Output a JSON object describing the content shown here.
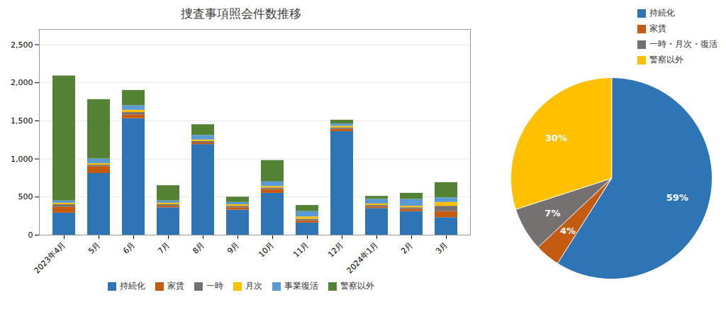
{
  "chart_data": [
    {
      "type": "bar",
      "title": "捜査事項照会件数推移",
      "categories": [
        "2023年4月",
        "5月",
        "6月",
        "7月",
        "8月",
        "9月",
        "10月",
        "11月",
        "12月",
        "2024年1月",
        "2月",
        "3月"
      ],
      "series": [
        {
          "name": "持続化",
          "color": "#2E75B6",
          "values": [
            290,
            810,
            1530,
            360,
            1190,
            330,
            550,
            160,
            1360,
            350,
            310,
            230
          ]
        },
        {
          "name": "家賃",
          "color": "#C55A11",
          "values": [
            80,
            90,
            50,
            20,
            20,
            30,
            50,
            30,
            30,
            20,
            30,
            80
          ]
        },
        {
          "name": "一時",
          "color": "#767171",
          "values": [
            30,
            20,
            30,
            20,
            20,
            20,
            20,
            20,
            20,
            20,
            20,
            70
          ]
        },
        {
          "name": "月次",
          "color": "#FFC000",
          "values": [
            20,
            20,
            30,
            20,
            20,
            20,
            20,
            30,
            20,
            20,
            20,
            50
          ]
        },
        {
          "name": "事業復活",
          "color": "#5B9BD5",
          "values": [
            30,
            60,
            60,
            30,
            60,
            30,
            60,
            70,
            30,
            60,
            90,
            60
          ]
        },
        {
          "name": "警察以外",
          "color": "#548235",
          "values": [
            1640,
            780,
            200,
            200,
            140,
            70,
            280,
            80,
            50,
            40,
            80,
            200
          ]
        }
      ],
      "stacked": true,
      "ylim": [
        0,
        2700
      ],
      "yticks": [
        0,
        500,
        {
          "value": 1000,
          "label": "1,000"
        },
        {
          "value": 1500,
          "label": "1,500"
        },
        {
          "value": 2000,
          "label": "2,000"
        },
        {
          "value": 2500,
          "label": "2,500"
        }
      ],
      "grid": true,
      "legend": "bottom"
    },
    {
      "type": "pie",
      "categories": [
        "持続化",
        "家賃",
        "一時・月次・復活",
        "警察以外"
      ],
      "values": [
        59,
        4,
        7,
        30
      ],
      "value_labels": [
        "59%",
        "4%",
        "7%",
        "30%"
      ],
      "colors": [
        "#2E75B6",
        "#C55A11",
        "#767171",
        "#FFC000"
      ],
      "data_labels": true,
      "legend": "right"
    }
  ]
}
